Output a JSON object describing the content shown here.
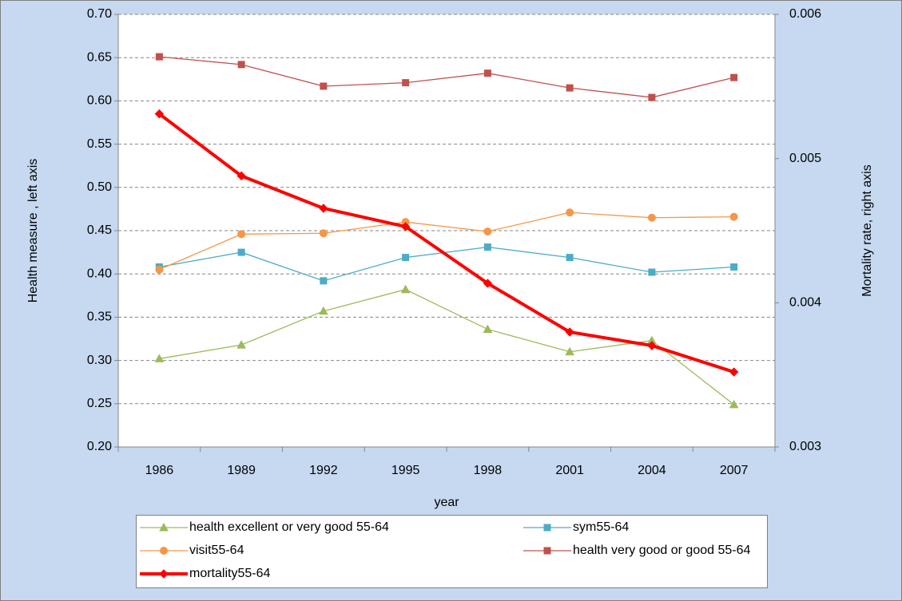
{
  "chart_data": {
    "type": "line",
    "x_label": "year",
    "y_label": "Health measure , left axis",
    "y2_label": "Mortality rate, right axis",
    "categories": [
      "1986",
      "1989",
      "1992",
      "1995",
      "1998",
      "2001",
      "2004",
      "2007"
    ],
    "ylim": [
      0.2,
      0.7
    ],
    "yticks": [
      {
        "value": 0.2,
        "label": "0.20"
      },
      0.25,
      {
        "value": 0.3,
        "label": "0.30"
      },
      0.35,
      {
        "value": 0.4,
        "label": "0.40"
      },
      0.45,
      {
        "value": 0.5,
        "label": "0.50"
      },
      0.55,
      {
        "value": 0.6,
        "label": "0.60"
      },
      0.65,
      {
        "value": 0.7,
        "label": "0.70"
      }
    ],
    "y2lim": [
      0.003,
      0.006
    ],
    "y2ticks": [
      0.003,
      0.004,
      0.005,
      0.006
    ],
    "grid": true,
    "legend": "bottom",
    "series": [
      {
        "name": "health excellent or very good 55-64",
        "color": "#9bbb59",
        "marker": "triangle",
        "values": [
          0.302,
          0.318,
          0.357,
          0.382,
          0.336,
          0.31,
          0.323,
          0.249
        ]
      },
      {
        "name": "sym55-64",
        "color": "#4bacc6",
        "marker": "square",
        "values": [
          0.408,
          0.425,
          0.392,
          0.419,
          0.431,
          0.419,
          0.402,
          0.408
        ]
      },
      {
        "name": "visit55-64",
        "color": "#f79646",
        "marker": "circle",
        "values": [
          0.405,
          0.446,
          0.447,
          0.46,
          0.449,
          0.471,
          0.465,
          0.466
        ]
      },
      {
        "name": "health very good or good 55-64",
        "color": "#c0504d",
        "marker": "square",
        "values": [
          0.651,
          0.642,
          0.617,
          0.621,
          0.632,
          0.615,
          0.604,
          0.627
        ]
      },
      {
        "name": "mortality55-64",
        "color": "#ff0000",
        "marker": "diamond",
        "axis": "y2",
        "values": [
          0.00531,
          0.00488,
          0.004655,
          0.004528,
          0.004135,
          0.003797,
          0.003703,
          0.00352
        ]
      }
    ]
  }
}
